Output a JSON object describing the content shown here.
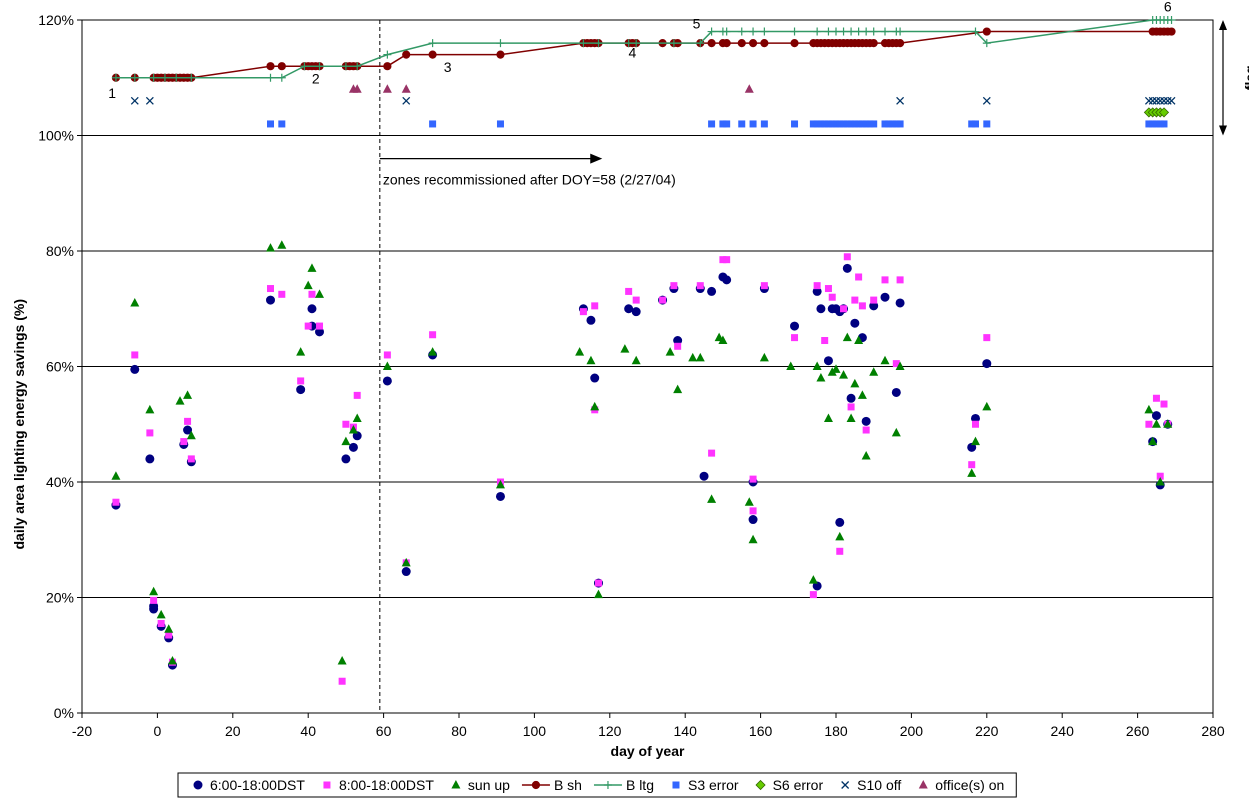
{
  "chart_data": {
    "type": "scatter",
    "xlabel": "day of year",
    "ylabel": "daily area lighting energy savings (%)",
    "flag_label": "flag",
    "xlim": [
      -20,
      280
    ],
    "ylim": [
      0,
      120
    ],
    "x_ticks": [
      -20,
      0,
      20,
      40,
      60,
      80,
      100,
      120,
      140,
      160,
      180,
      200,
      220,
      240,
      260,
      280
    ],
    "y_ticks": [
      0,
      20,
      40,
      60,
      80,
      100,
      120
    ],
    "y_tick_labels": [
      "0%",
      "20%",
      "40%",
      "60%",
      "80%",
      "100%",
      "120%"
    ],
    "grid": "horizontal",
    "legend_position": "bottom",
    "colors": {
      "s1": "#000080",
      "s2": "#ff33ff",
      "s3": "#008000",
      "bsh": "#800000",
      "bltg": "#339966",
      "s3err": "#3366ff",
      "s6err": "#66cc00",
      "s10": "#003366",
      "office": "#993366"
    },
    "recommission": {
      "x": 59,
      "arrow_to_x": 118,
      "arrow_y": 96,
      "label": "zones recommissioned after DOY=58 (2/27/04)"
    },
    "step_labels": [
      {
        "x": -12,
        "y": 106.5,
        "text": "1"
      },
      {
        "x": 42,
        "y": 109,
        "text": "2"
      },
      {
        "x": 77,
        "y": 111,
        "text": "3"
      },
      {
        "x": 126,
        "y": 113.5,
        "text": "4"
      },
      {
        "x": 143,
        "y": 118.5,
        "text": "5"
      },
      {
        "x": 268,
        "y": 121.5,
        "text": "6"
      }
    ],
    "series": [
      {
        "name": "6:00-18:00DST",
        "marker": "circle",
        "x": [
          -11,
          -6,
          -2,
          -1,
          -1,
          1,
          3,
          4,
          7,
          8,
          9,
          30,
          38,
          41,
          41,
          43,
          50,
          52,
          53,
          61,
          66,
          73,
          91,
          113,
          115,
          116,
          117,
          125,
          127,
          134,
          137,
          138,
          144,
          145,
          147,
          150,
          151,
          158,
          158,
          161,
          169,
          175,
          175,
          176,
          178,
          179,
          180,
          181,
          181,
          182,
          183,
          184,
          185,
          187,
          188,
          190,
          193,
          196,
          197,
          216,
          217,
          220,
          264,
          265,
          266,
          268
        ],
        "y": [
          36,
          59.5,
          44,
          18.5,
          18,
          15,
          13,
          8.3,
          46.5,
          49,
          43.5,
          71.5,
          56,
          67,
          70,
          66,
          44,
          46,
          48,
          57.5,
          24.5,
          62,
          37.5,
          70,
          68,
          58,
          22.5,
          70,
          69.5,
          71.5,
          73.5,
          64.5,
          73.5,
          41,
          73,
          75.5,
          75,
          40,
          33.5,
          73.5,
          67,
          22,
          73,
          70,
          61,
          70,
          70,
          69.5,
          33,
          70,
          77,
          54.5,
          67.5,
          65,
          50.5,
          70.5,
          72,
          55.5,
          71,
          46,
          51,
          60.5,
          47,
          51.5,
          39.5,
          50
        ]
      },
      {
        "name": "8:00-18:00DST",
        "marker": "square",
        "x": [
          -11,
          -6,
          -2,
          -1,
          1,
          3,
          4,
          7,
          8,
          9,
          30,
          33,
          38,
          40,
          41,
          43,
          49,
          50,
          52,
          53,
          61,
          66,
          73,
          91,
          113,
          116,
          116,
          117,
          125,
          127,
          134,
          137,
          138,
          144,
          147,
          150,
          151,
          158,
          158,
          161,
          169,
          174,
          175,
          177,
          178,
          179,
          181,
          182,
          183,
          184,
          185,
          186,
          187,
          188,
          190,
          193,
          196,
          197,
          216,
          217,
          220,
          263,
          265,
          266,
          267,
          268
        ],
        "y": [
          36.5,
          62,
          48.5,
          19.5,
          15.5,
          13.5,
          8.8,
          47,
          50.5,
          44,
          73.5,
          72.5,
          57.5,
          67,
          72.5,
          67,
          5.5,
          50,
          49.5,
          55,
          62,
          26,
          65.5,
          40,
          69.5,
          70.5,
          52.5,
          22.5,
          73,
          71.5,
          71.5,
          74,
          63.5,
          74,
          45,
          78.5,
          78.5,
          40.5,
          35,
          74,
          65,
          20.5,
          74,
          64.5,
          73.5,
          72,
          28,
          70,
          79,
          53,
          71.5,
          75.5,
          70.5,
          49,
          71.5,
          75,
          60.5,
          75,
          43,
          50,
          65,
          50,
          54.5,
          41,
          53.5,
          50
        ]
      },
      {
        "name": "sun up",
        "marker": "triangle",
        "x": [
          -11,
          -6,
          -2,
          -1,
          1,
          3,
          4,
          6,
          8,
          9,
          30,
          33,
          38,
          40,
          41,
          43,
          49,
          50,
          52,
          53,
          61,
          66,
          73,
          91,
          112,
          115,
          116,
          117,
          124,
          127,
          136,
          138,
          142,
          144,
          147,
          149,
          150,
          157,
          158,
          161,
          168,
          174,
          175,
          176,
          178,
          179,
          180,
          181,
          182,
          183,
          184,
          185,
          186,
          187,
          188,
          190,
          193,
          196,
          197,
          216,
          217,
          220,
          263,
          264,
          265,
          266,
          268
        ],
        "y": [
          41,
          71,
          52.5,
          21,
          17,
          14.5,
          9,
          54,
          55,
          48,
          80.5,
          81,
          62.5,
          74,
          77,
          72.5,
          9,
          47,
          49,
          51,
          60,
          26,
          62.5,
          39.5,
          62.5,
          61,
          53,
          20.5,
          63,
          61,
          62.5,
          56,
          61.5,
          61.5,
          37,
          65,
          64.5,
          36.5,
          30,
          61.5,
          60,
          23,
          60,
          58,
          51,
          59,
          59.5,
          30.5,
          58.5,
          65,
          51,
          57,
          64.5,
          55,
          44.5,
          59,
          61,
          48.5,
          60,
          41.5,
          47,
          53,
          52.5,
          47,
          50,
          40,
          50
        ]
      },
      {
        "name": "B sh",
        "marker": "line-circle",
        "x": [
          -11,
          -6,
          -1,
          0,
          1,
          2,
          3,
          4,
          5,
          6,
          7,
          8,
          9,
          30,
          33,
          39,
          40,
          41,
          42,
          43,
          50,
          51,
          52,
          53,
          61,
          66,
          73,
          91,
          113,
          114,
          115,
          116,
          117,
          125,
          126,
          127,
          134,
          137,
          138,
          144,
          147,
          150,
          151,
          155,
          158,
          161,
          169,
          174,
          175,
          176,
          177,
          178,
          179,
          180,
          181,
          182,
          183,
          184,
          185,
          186,
          187,
          188,
          189,
          190,
          193,
          194,
          195,
          196,
          197,
          220,
          264,
          265,
          266,
          267,
          268,
          269
        ],
        "y": [
          110,
          110,
          110,
          110,
          110,
          110,
          110,
          110,
          110,
          110,
          110,
          110,
          110,
          112,
          112,
          112,
          112,
          112,
          112,
          112,
          112,
          112,
          112,
          112,
          112,
          114,
          114,
          114,
          116,
          116,
          116,
          116,
          116,
          116,
          116,
          116,
          116,
          116,
          116,
          116,
          116,
          116,
          116,
          116,
          116,
          116,
          116,
          116,
          116,
          116,
          116,
          116,
          116,
          116,
          116,
          116,
          116,
          116,
          116,
          116,
          116,
          116,
          116,
          116,
          116,
          116,
          116,
          116,
          116,
          118,
          118,
          118,
          118,
          118,
          118,
          118
        ]
      },
      {
        "name": "B ltg",
        "marker": "line-plus",
        "x": [
          -11,
          -6,
          -1,
          2,
          5,
          9,
          30,
          33,
          39,
          43,
          50,
          53,
          61,
          73,
          91,
          113,
          117,
          125,
          127,
          137,
          144,
          147,
          150,
          151,
          155,
          158,
          161,
          169,
          175,
          178,
          180,
          182,
          184,
          186,
          188,
          190,
          193,
          196,
          197,
          217,
          220,
          264,
          265,
          266,
          267,
          268,
          269
        ],
        "y": [
          110,
          110,
          110,
          110,
          110,
          110,
          110,
          110,
          112,
          112,
          112,
          112,
          114,
          116,
          116,
          116,
          116,
          116,
          116,
          116,
          116,
          118,
          118,
          118,
          118,
          118,
          118,
          118,
          118,
          118,
          118,
          118,
          118,
          118,
          118,
          118,
          118,
          118,
          118,
          118,
          116,
          120,
          120,
          120,
          120,
          120,
          120
        ]
      },
      {
        "name": "S3 error",
        "marker": "square",
        "x": [
          30,
          33,
          73,
          91,
          147,
          150,
          151,
          155,
          158,
          161,
          169,
          174,
          175,
          176,
          177,
          178,
          179,
          180,
          181,
          182,
          183,
          184,
          185,
          186,
          187,
          188,
          189,
          190,
          193,
          194,
          195,
          196,
          197,
          216,
          217,
          220,
          263,
          264,
          265,
          266,
          267
        ],
        "y": [
          102,
          102,
          102,
          102,
          102,
          102,
          102,
          102,
          102,
          102,
          102,
          102,
          102,
          102,
          102,
          102,
          102,
          102,
          102,
          102,
          102,
          102,
          102,
          102,
          102,
          102,
          102,
          102,
          102,
          102,
          102,
          102,
          102,
          102,
          102,
          102,
          102,
          102,
          102,
          102,
          102
        ]
      },
      {
        "name": "S6 error",
        "marker": "diamond",
        "x": [
          263,
          264,
          265,
          266,
          267
        ],
        "y": [
          104,
          104,
          104,
          104,
          104
        ]
      },
      {
        "name": "S10 off",
        "marker": "x",
        "x": [
          -6,
          -2,
          66,
          197,
          220,
          263,
          264,
          265,
          266,
          267,
          268,
          269
        ],
        "y": [
          106,
          106,
          106,
          106,
          106,
          106,
          106,
          106,
          106,
          106,
          106,
          106
        ]
      },
      {
        "name": "office(s) on",
        "marker": "triangle",
        "x": [
          52,
          53,
          61,
          66,
          157
        ],
        "y": [
          108,
          108,
          108,
          108,
          108
        ]
      }
    ]
  }
}
